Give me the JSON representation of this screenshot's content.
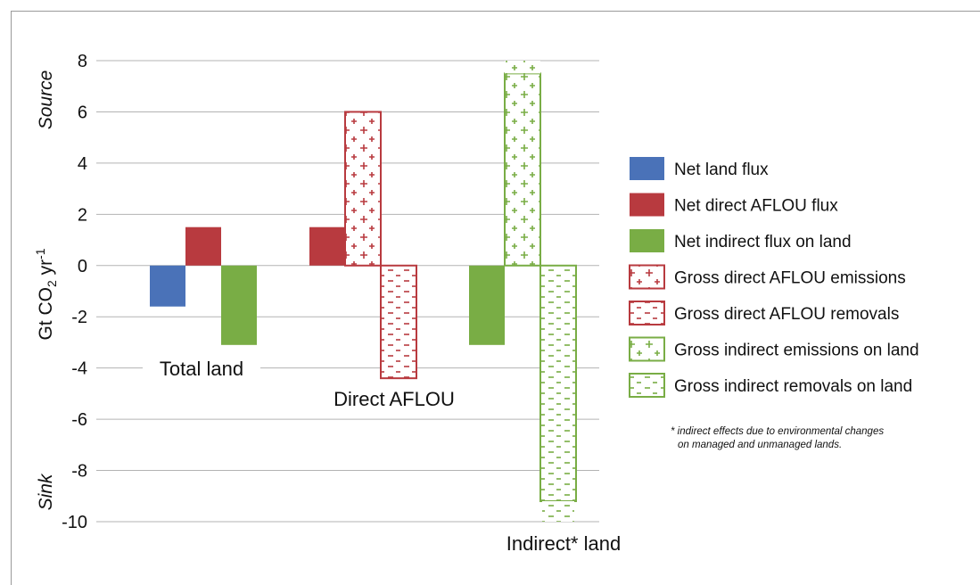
{
  "chart_data": {
    "type": "bar",
    "ylabel_main": "Gt CO",
    "ylabel_sub": "2",
    "ylabel_unit": " yr",
    "ylabel_sup": "-1",
    "source_label": "Source",
    "sink_label": "Sink",
    "ylim": [
      -10,
      8
    ],
    "yticks": [
      8,
      6,
      4,
      2,
      0,
      -2,
      -4,
      -6,
      -8,
      -10
    ],
    "grid": true,
    "legend_position": "right",
    "colors": {
      "net_land": "#4a72b8",
      "direct": "#b83a3f",
      "indirect": "#79ad45"
    },
    "groups": [
      {
        "label": "Total land",
        "bars": [
          {
            "series": "Net land flux",
            "value": -1.6,
            "style": "solid-blue"
          },
          {
            "series": "Net direct AFLOU flux",
            "value": 1.5,
            "style": "solid-red"
          },
          {
            "series": "Net indirect flux on land",
            "value": -3.1,
            "style": "solid-green"
          }
        ]
      },
      {
        "label": "Direct AFLOU",
        "bars": [
          {
            "series": "Net direct AFLOU flux",
            "value": 1.5,
            "style": "solid-red"
          },
          {
            "series": "Gross direct AFLOU emissions",
            "value": 6.0,
            "style": "plus-red"
          },
          {
            "series": "Gross direct AFLOU removals",
            "value": -4.4,
            "style": "minus-red"
          }
        ]
      },
      {
        "label": "Indirect* land",
        "bars": [
          {
            "series": "Net indirect flux on land",
            "value": -3.1,
            "style": "solid-green"
          },
          {
            "series": "Gross indirect emissions on land",
            "value": 7.5,
            "range_top": 8.0,
            "style": "plus-green"
          },
          {
            "series": "Gross indirect removals on land",
            "value": -9.2,
            "range_bottom": -10.0,
            "style": "minus-green"
          }
        ]
      }
    ],
    "legend": [
      {
        "label": "Net land flux",
        "style": "solid-blue"
      },
      {
        "label": "Net direct AFLOU flux",
        "style": "solid-red"
      },
      {
        "label": "Net indirect flux on land",
        "style": "solid-green"
      },
      {
        "label": "Gross direct AFLOU emissions",
        "style": "plus-red"
      },
      {
        "label": "Gross direct AFLOU removals",
        "style": "minus-red"
      },
      {
        "label": "Gross indirect emissions on land",
        "style": "plus-green"
      },
      {
        "label": "Gross indirect removals on land",
        "style": "minus-green"
      }
    ],
    "footnote_lines": [
      "* indirect effects due to environmental changes",
      "on managed and unmanaged lands."
    ]
  }
}
